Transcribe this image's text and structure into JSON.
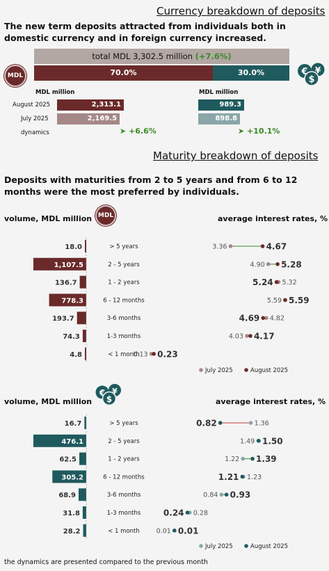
{
  "currency": {
    "title": "Currency breakdown of deposits",
    "intro": "The new term deposits attracted from individuals both in domestic currency and in foreign currency increased.",
    "total_label": "total MDL 3,302.5 million",
    "total_change": "(+7.6%)",
    "mdl_share_label": "70.0%",
    "fx_share_label": "30.0%",
    "mdl_share": 70.0,
    "fx_share": 30.0,
    "unit_left": "MDL million",
    "unit_right": "MDL million",
    "rows": [
      "August 2025",
      "July 2025",
      "dynamics"
    ],
    "mdl_values": [
      "2,313.1",
      "2,169.5"
    ],
    "mdl_nums": [
      2313.1,
      2169.5
    ],
    "fx_values": [
      "989.3",
      "898.8"
    ],
    "fx_nums": [
      989.3,
      898.8
    ],
    "mdl_dynamics": "+6.6%",
    "fx_dynamics": "+10.1%",
    "mdl_badge": "MDL"
  },
  "maturity": {
    "title": "Maturity breakdown of deposits",
    "intro": "Deposits with maturities from 2 to 5 years and from 6 to 12 months were the most preferred by individuals.",
    "volume_label": "volume, MDL million",
    "rates_label": "average interest rates, %",
    "footnote": "the dynamics are presented compared to the previous month"
  },
  "colors": {
    "mdl": "#6b2a2a",
    "mdl_light": "#a58787",
    "fx": "#1f5a5e",
    "fx_light": "#8aa6a8",
    "total_bar": "#b3a7a3",
    "arrow_green": "#3a8a2a",
    "arrow_red": "#c23a3a"
  },
  "chart_data": [
    {
      "type": "bar",
      "name": "mdl_volume",
      "categories": [
        "> 5 years",
        "2 - 5 years",
        "1 - 2 years",
        "6 - 12 months",
        "3-6 months",
        "1-3 months",
        "< 1 month"
      ],
      "values": [
        18.0,
        1107.5,
        136.7,
        778.3,
        193.7,
        74.3,
        4.8
      ],
      "value_labels": [
        "18.0",
        "1,107.5",
        "136.7",
        "778.3",
        "193.7",
        "74.3",
        "4.8"
      ],
      "color": "#6b2a2a"
    },
    {
      "type": "scatter",
      "name": "mdl_rates",
      "categories": [
        "> 5 years",
        "2 - 5 years",
        "1 - 2 years",
        "6 - 12 months",
        "3-6 months",
        "1-3 months",
        "< 1 month"
      ],
      "series": [
        {
          "name": "July 2025",
          "values": [
            3.36,
            4.9,
            5.32,
            5.59,
            4.82,
            4.03,
            0.13
          ]
        },
        {
          "name": "August 2025",
          "values": [
            4.67,
            5.28,
            5.24,
            5.59,
            4.69,
            4.17,
            0.23
          ]
        }
      ],
      "july_labels": [
        "3.36",
        "4.90",
        "5.32",
        "5.59",
        "4.82",
        "4.03",
        "0.13"
      ],
      "aug_labels": [
        "4.67",
        "5.28",
        "5.24",
        "5.59",
        "4.69",
        "4.17",
        "0.23"
      ],
      "legend": [
        "July 2025",
        "August 2025"
      ]
    },
    {
      "type": "bar",
      "name": "fx_volume",
      "categories": [
        "> 5 years",
        "2 - 5 years",
        "1 - 2 years",
        "6 - 12 months",
        "3-6 months",
        "1-3 months",
        "< 1 month"
      ],
      "values": [
        16.7,
        476.1,
        62.5,
        305.2,
        68.9,
        31.8,
        28.2
      ],
      "value_labels": [
        "16.7",
        "476.1",
        "62.5",
        "305.2",
        "68.9",
        "31.8",
        "28.2"
      ],
      "color": "#1f5a5e"
    },
    {
      "type": "scatter",
      "name": "fx_rates",
      "categories": [
        "> 5 years",
        "2 - 5 years",
        "1 - 2 years",
        "6 - 12 months",
        "3-6 months",
        "1-3 months",
        "< 1 month"
      ],
      "series": [
        {
          "name": "July 2025",
          "values": [
            1.36,
            1.49,
            1.22,
            1.23,
            0.84,
            0.28,
            0.01
          ]
        },
        {
          "name": "August 2025",
          "values": [
            0.82,
            1.5,
            1.39,
            1.21,
            0.93,
            0.24,
            0.01
          ]
        }
      ],
      "july_labels": [
        "1.36",
        "1.49",
        "1.22",
        "1.23",
        "0.84",
        "0.28",
        "0.01"
      ],
      "aug_labels": [
        "0.82",
        "1.50",
        "1.39",
        "1.21",
        "0.93",
        "0.24",
        "0.01"
      ],
      "legend": [
        "July 2025",
        "August 2025"
      ]
    }
  ]
}
